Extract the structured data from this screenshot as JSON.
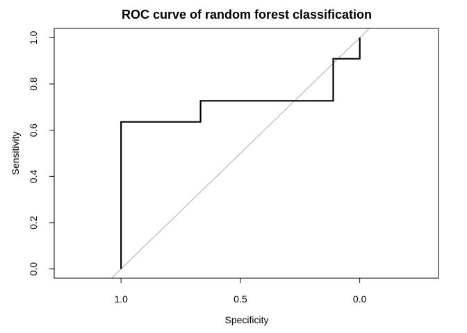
{
  "chart_data": {
    "type": "line",
    "title": "ROC curve of random forest classification",
    "xlabel": "Specificity",
    "ylabel": "Sensitivity",
    "x_reversed": true,
    "xlim": [
      1.28,
      -0.33
    ],
    "ylim": [
      -0.04,
      1.04
    ],
    "x_ticks": [
      1.0,
      0.5,
      0.0
    ],
    "x_tick_labels": [
      "1.0",
      "0.5",
      "0.0"
    ],
    "y_ticks": [
      0.0,
      0.2,
      0.4,
      0.6,
      0.8,
      1.0
    ],
    "y_tick_labels": [
      "0.0",
      "0.2",
      "0.4",
      "0.6",
      "0.8",
      "1.0"
    ],
    "grid": false,
    "series": [
      {
        "x": [
          1.0,
          1.0,
          0.667,
          0.667,
          0.111,
          0.111,
          0.0,
          0.0
        ],
        "y": [
          0.0,
          0.636,
          0.636,
          0.727,
          0.727,
          0.909,
          0.909,
          1.0
        ],
        "color": "#000000"
      }
    ],
    "reference_line": {
      "x": [
        1.0,
        0.0
      ],
      "y": [
        0.0,
        1.0
      ],
      "color": "#aaaaaa"
    }
  }
}
